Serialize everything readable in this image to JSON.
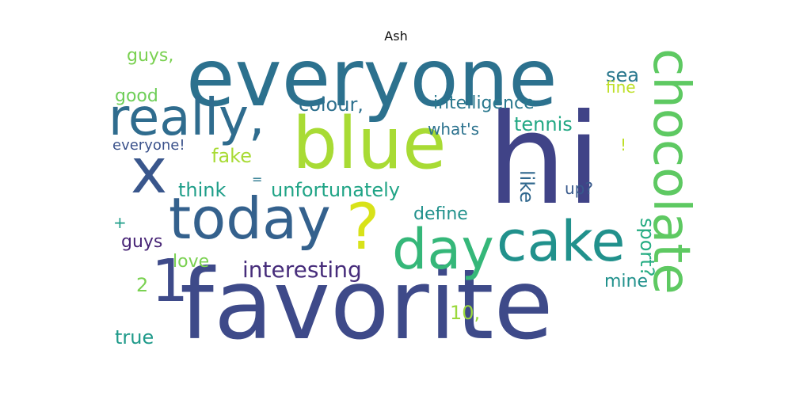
{
  "title": "Ash",
  "words": [
    {
      "text": "everyone",
      "color": "#2c718e"
    },
    {
      "text": "hi",
      "color": "#404387"
    },
    {
      "text": "favorite",
      "color": "#3e4a89"
    },
    {
      "text": "chocolate",
      "color": "#5ec962"
    },
    {
      "text": "blue",
      "color": "#a8db34"
    },
    {
      "text": "today",
      "color": "#34618d"
    },
    {
      "text": "day",
      "color": "#35b779"
    },
    {
      "text": "cake",
      "color": "#21918c"
    },
    {
      "text": "really,",
      "color": "#2f6c8e"
    },
    {
      "text": "x",
      "color": "#39568c"
    },
    {
      "text": "?",
      "color": "#d8e219"
    },
    {
      "text": "1",
      "color": "#3e4a89"
    },
    {
      "text": "colour,",
      "color": "#2d708e"
    },
    {
      "text": "intelligence",
      "color": "#2a788e"
    },
    {
      "text": "unfortunately",
      "color": "#20a486"
    },
    {
      "text": "interesting",
      "color": "#472d7b"
    },
    {
      "text": "tennis",
      "color": "#22a884"
    },
    {
      "text": "think",
      "color": "#1f9e89"
    },
    {
      "text": "define",
      "color": "#21918c"
    },
    {
      "text": "sport?",
      "color": "#25ac82"
    },
    {
      "text": "like",
      "color": "#31688e"
    },
    {
      "text": "everyone!",
      "color": "#3b528b"
    },
    {
      "text": "fake",
      "color": "#a8db34"
    },
    {
      "text": "what's",
      "color": "#2c728e"
    },
    {
      "text": "up?",
      "color": "#38598c"
    },
    {
      "text": "guys,",
      "color": "#7ad151"
    },
    {
      "text": "good",
      "color": "#6ece58"
    },
    {
      "text": "sea",
      "color": "#2a788e"
    },
    {
      "text": "fine",
      "color": "#bddf26"
    },
    {
      "text": "!",
      "color": "#bddf26"
    },
    {
      "text": "guys",
      "color": "#482576"
    },
    {
      "text": "love",
      "color": "#7ad151"
    },
    {
      "text": "true",
      "color": "#1f9a8a"
    },
    {
      "text": "2",
      "color": "#7ad151"
    },
    {
      "text": "mine",
      "color": "#21918c"
    },
    {
      "text": "10,",
      "color": "#9bd93c"
    },
    {
      "text": "=",
      "color": "#2a788e"
    },
    {
      "text": "+",
      "color": "#1f9e89"
    }
  ]
}
